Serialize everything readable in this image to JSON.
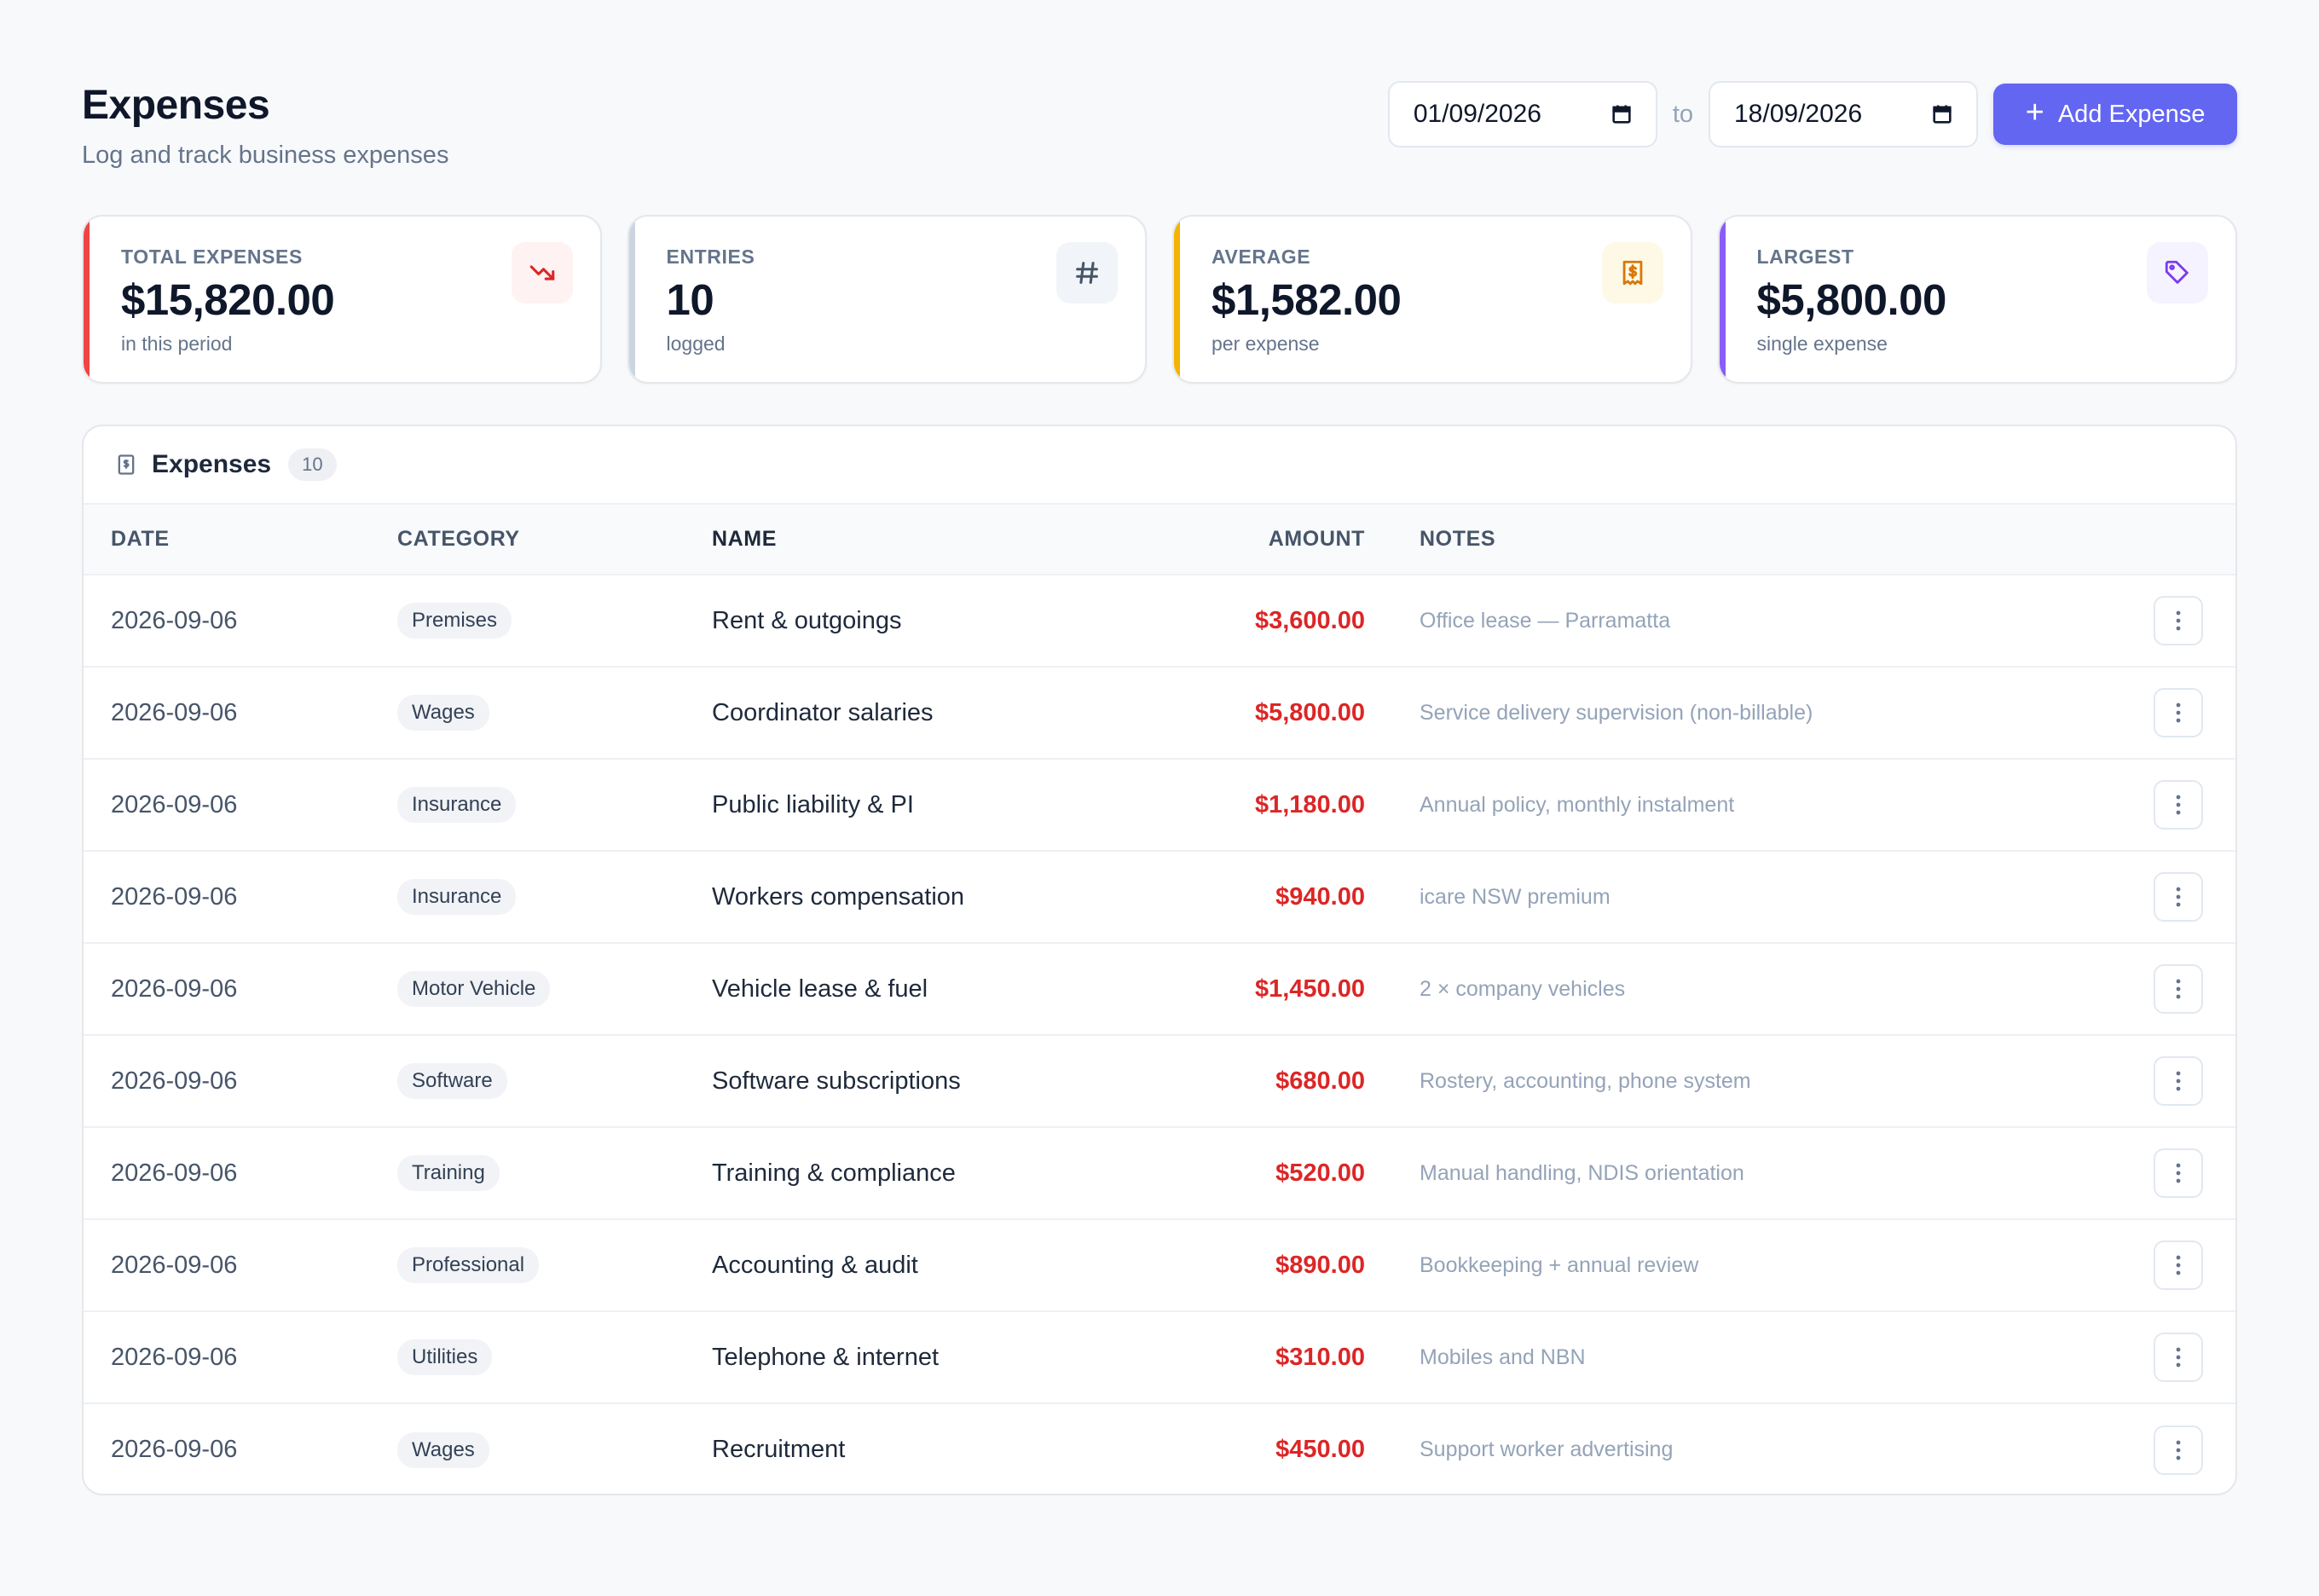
{
  "header": {
    "title": "Expenses",
    "subtitle": "Log and track business expenses",
    "date_from": "01/09/2026",
    "date_to": "18/09/2026",
    "to_label": "to",
    "add_button_label": "Add Expense",
    "accent_color": "#6366f1"
  },
  "stats": [
    {
      "label": "TOTAL EXPENSES",
      "value": "$15,820.00",
      "note": "in this period",
      "icon": "trending-down-icon",
      "color": "#ef4444"
    },
    {
      "label": "ENTRIES",
      "value": "10",
      "note": "logged",
      "icon": "hash-icon",
      "color": "#cbd5e1"
    },
    {
      "label": "AVERAGE",
      "value": "$1,582.00",
      "note": "per expense",
      "icon": "receipt-icon",
      "color": "#f5b301"
    },
    {
      "label": "LARGEST",
      "value": "$5,800.00",
      "note": "single expense",
      "icon": "tag-icon",
      "color": "#8b5cf6"
    }
  ],
  "table": {
    "title": "Expenses",
    "count": "10",
    "columns": {
      "date": "DATE",
      "category": "CATEGORY",
      "name": "NAME",
      "amount": "AMOUNT",
      "notes": "NOTES"
    },
    "rows": [
      {
        "date": "2026-09-06",
        "category": "Premises",
        "name": "Rent & outgoings",
        "amount": "$3,600.00",
        "notes": "Office lease — Parramatta"
      },
      {
        "date": "2026-09-06",
        "category": "Wages",
        "name": "Coordinator salaries",
        "amount": "$5,800.00",
        "notes": "Service delivery supervision (non-billable)"
      },
      {
        "date": "2026-09-06",
        "category": "Insurance",
        "name": "Public liability & PI",
        "amount": "$1,180.00",
        "notes": "Annual policy, monthly instalment"
      },
      {
        "date": "2026-09-06",
        "category": "Insurance",
        "name": "Workers compensation",
        "amount": "$940.00",
        "notes": "icare NSW premium"
      },
      {
        "date": "2026-09-06",
        "category": "Motor Vehicle",
        "name": "Vehicle lease & fuel",
        "amount": "$1,450.00",
        "notes": "2 × company vehicles"
      },
      {
        "date": "2026-09-06",
        "category": "Software",
        "name": "Software subscriptions",
        "amount": "$680.00",
        "notes": "Rostery, accounting, phone system"
      },
      {
        "date": "2026-09-06",
        "category": "Training",
        "name": "Training & compliance",
        "amount": "$520.00",
        "notes": "Manual handling, NDIS orientation"
      },
      {
        "date": "2026-09-06",
        "category": "Professional",
        "name": "Accounting & audit",
        "amount": "$890.00",
        "notes": "Bookkeeping + annual review"
      },
      {
        "date": "2026-09-06",
        "category": "Utilities",
        "name": "Telephone & internet",
        "amount": "$310.00",
        "notes": "Mobiles and NBN"
      },
      {
        "date": "2026-09-06",
        "category": "Wages",
        "name": "Recruitment",
        "amount": "$450.00",
        "notes": "Support worker advertising"
      }
    ]
  }
}
